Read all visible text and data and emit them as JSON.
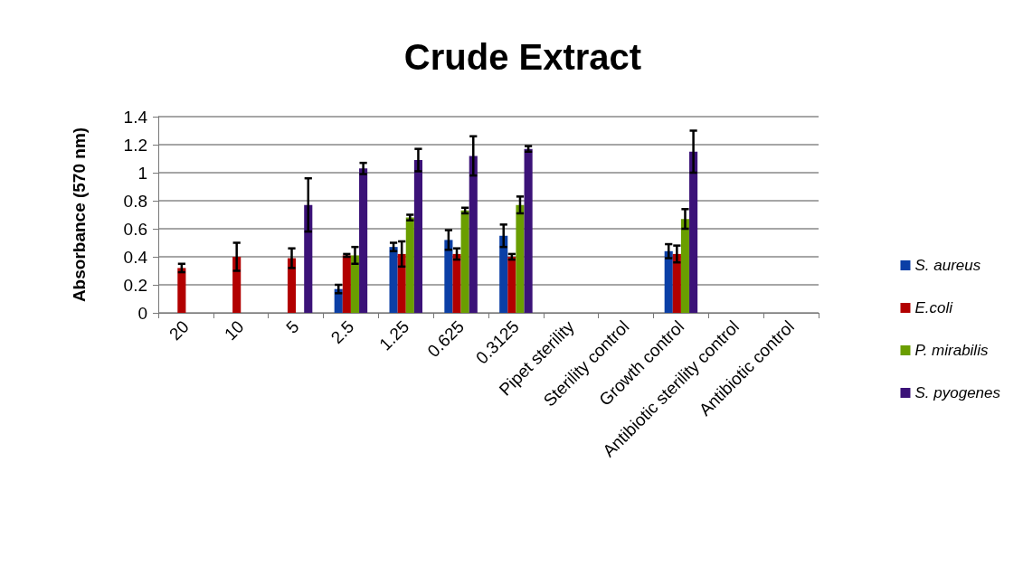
{
  "chart_data": {
    "type": "bar",
    "title": "Crude Extract",
    "ylabel": "Absorbance (570 nm)",
    "categories": [
      "20",
      "10",
      "5",
      "2.5",
      "1.25",
      "0.625",
      "0.3125",
      "Pipet sterility",
      "Sterility control",
      "Growth control",
      "Antibiotic sterility control",
      "Antibiotic control"
    ],
    "series": [
      {
        "name": "S. aureus",
        "color": "#0b3fa6",
        "values": [
          null,
          null,
          null,
          0.17,
          0.47,
          0.52,
          0.55,
          null,
          null,
          0.44,
          null,
          null
        ],
        "errors": [
          null,
          null,
          null,
          0.03,
          0.03,
          0.07,
          0.08,
          null,
          null,
          0.05,
          null,
          null
        ]
      },
      {
        "name": "E.coli",
        "color": "#b20000",
        "values": [
          0.32,
          0.4,
          0.39,
          0.41,
          0.42,
          0.42,
          0.4,
          null,
          null,
          0.42,
          null,
          null
        ],
        "errors": [
          0.03,
          0.1,
          0.07,
          0.01,
          0.09,
          0.04,
          0.02,
          null,
          null,
          0.06,
          null,
          null
        ]
      },
      {
        "name": "P. mirabilis",
        "color": "#6a9e00",
        "values": [
          null,
          null,
          null,
          0.41,
          0.68,
          0.73,
          0.77,
          null,
          null,
          0.67,
          null,
          null
        ],
        "errors": [
          null,
          null,
          null,
          0.06,
          0.02,
          0.02,
          0.06,
          null,
          null,
          0.07,
          null,
          null
        ]
      },
      {
        "name": "S. pyogenes",
        "color": "#3b1278",
        "values": [
          null,
          null,
          0.77,
          1.03,
          1.09,
          1.12,
          1.17,
          null,
          null,
          1.15,
          null,
          null
        ],
        "errors": [
          null,
          null,
          0.19,
          0.04,
          0.08,
          0.14,
          0.02,
          null,
          null,
          0.15,
          null,
          null
        ]
      }
    ],
    "ylim": [
      0,
      1.4
    ],
    "yticks": [
      0,
      0.2,
      0.4,
      0.6,
      0.8,
      1,
      1.2,
      1.4
    ],
    "grid": "y",
    "legend": "right"
  }
}
